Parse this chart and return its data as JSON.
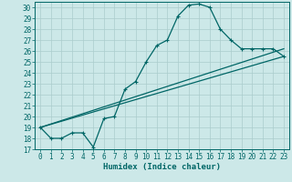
{
  "title": "",
  "xlabel": "Humidex (Indice chaleur)",
  "bg_color": "#cce8e8",
  "grid_color": "#aacccc",
  "line_color": "#006666",
  "xlim": [
    -0.5,
    23.5
  ],
  "ylim": [
    17,
    30.5
  ],
  "xticks": [
    0,
    1,
    2,
    3,
    4,
    5,
    6,
    7,
    8,
    9,
    10,
    11,
    12,
    13,
    14,
    15,
    16,
    17,
    18,
    19,
    20,
    21,
    22,
    23
  ],
  "yticks": [
    17,
    18,
    19,
    20,
    21,
    22,
    23,
    24,
    25,
    26,
    27,
    28,
    29,
    30
  ],
  "line1_x": [
    0,
    1,
    2,
    3,
    4,
    5,
    6,
    7,
    8,
    9,
    10,
    11,
    12,
    13,
    14,
    15,
    16,
    17,
    18,
    19,
    20,
    21,
    22,
    23
  ],
  "line1_y": [
    19.0,
    18.0,
    18.0,
    18.5,
    18.5,
    17.2,
    19.8,
    20.0,
    22.5,
    23.2,
    25.0,
    26.5,
    27.0,
    29.2,
    30.2,
    30.3,
    30.0,
    28.0,
    27.0,
    26.2,
    26.2,
    26.2,
    26.2,
    25.5
  ],
  "line2_x": [
    0,
    23
  ],
  "line2_y": [
    19.0,
    25.5
  ],
  "line3_x": [
    0,
    23
  ],
  "line3_y": [
    19.0,
    26.2
  ],
  "tick_fontsize": 5.5,
  "xlabel_fontsize": 6.5
}
